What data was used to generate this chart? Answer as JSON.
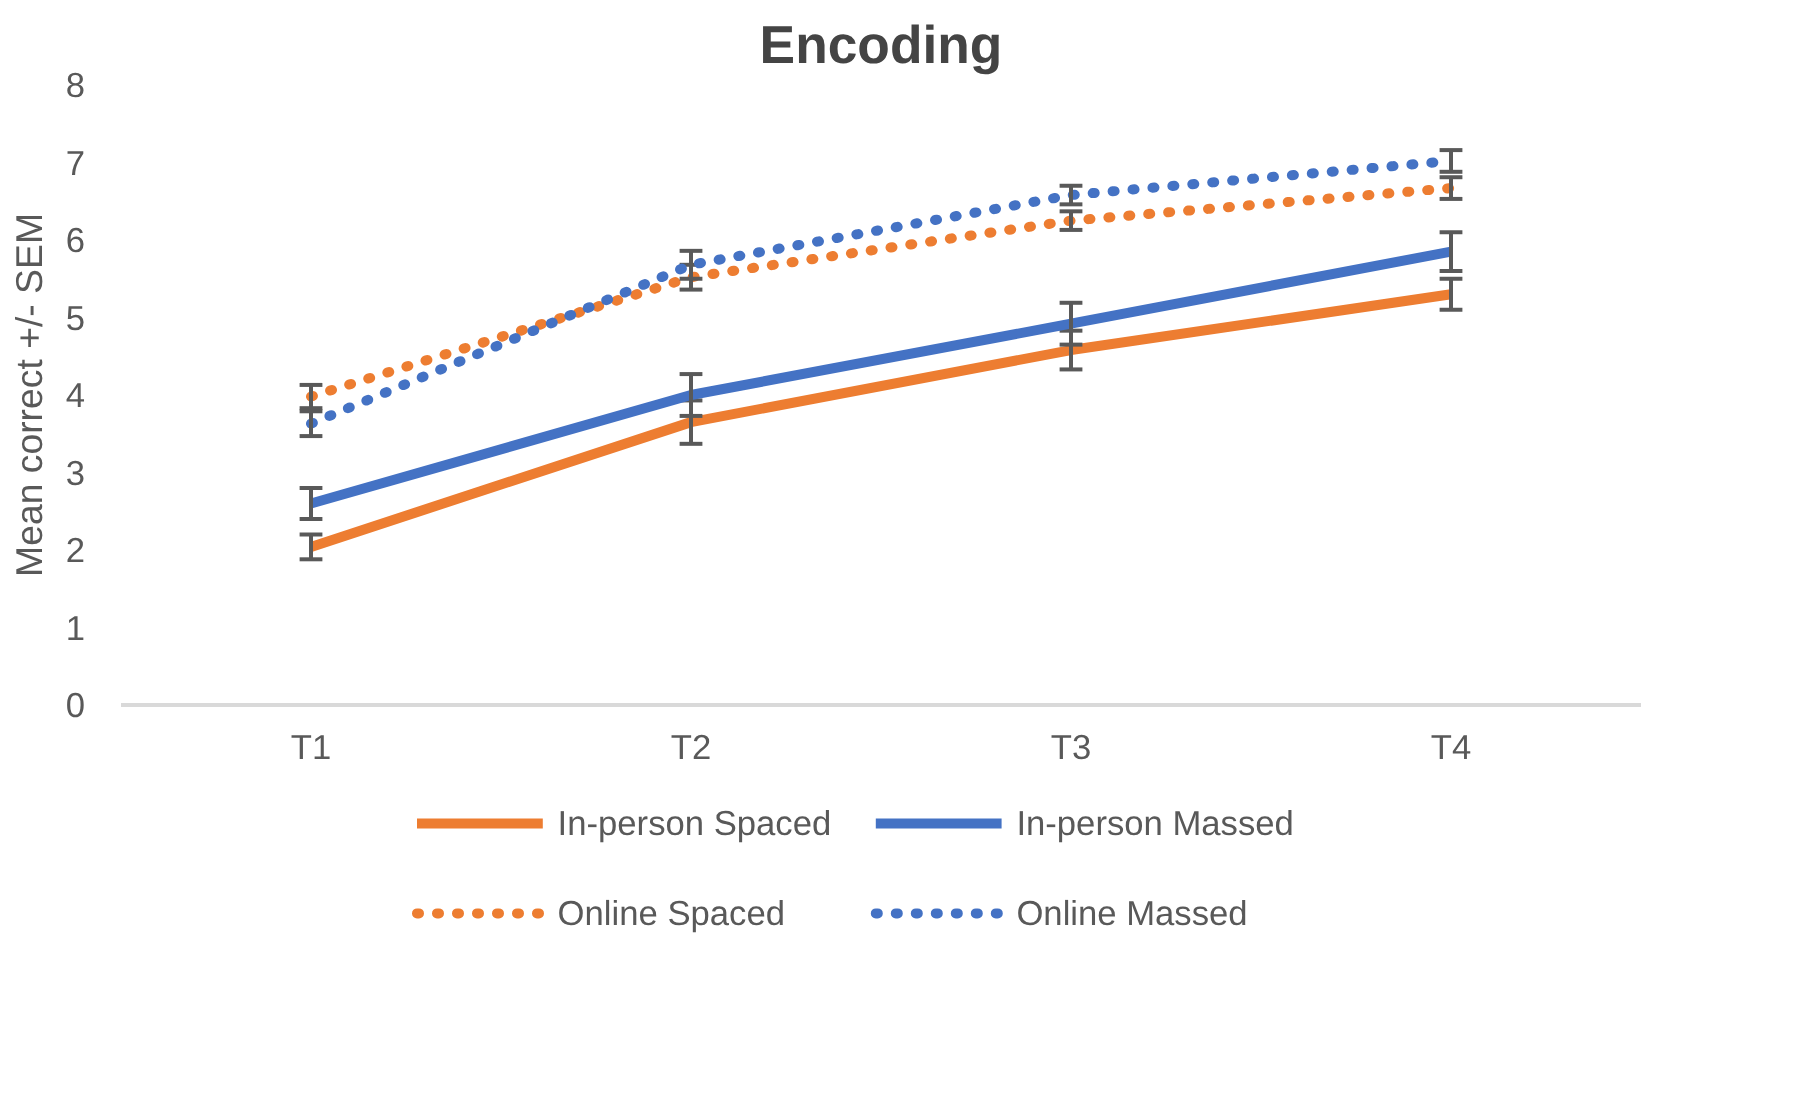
{
  "chart_data": {
    "type": "line",
    "title": "Encoding",
    "ylabel": "Mean correct +/- SEM",
    "categories": [
      "T1",
      "T2",
      "T3",
      "T4"
    ],
    "ylim": [
      0,
      8
    ],
    "yticks": [
      0,
      1,
      2,
      3,
      4,
      5,
      6,
      7,
      8
    ],
    "grid": false,
    "legend": "bottom",
    "marker": "none",
    "series": [
      {
        "name": "In-person Spaced",
        "color": "#ed7d31",
        "line_style": "solid",
        "values": [
          2.04,
          3.65,
          4.58,
          5.3
        ],
        "errors": [
          0.16,
          0.28,
          0.25,
          0.2
        ]
      },
      {
        "name": "In-person Massed",
        "color": "#4472c4",
        "line_style": "solid",
        "values": [
          2.6,
          4.0,
          4.92,
          5.85
        ],
        "errors": [
          0.2,
          0.27,
          0.27,
          0.25
        ]
      },
      {
        "name": "Online Spaced",
        "color": "#ed7d31",
        "line_style": "dotted",
        "values": [
          3.98,
          5.52,
          6.25,
          6.67
        ],
        "errors": [
          0.15,
          0.16,
          0.12,
          0.14
        ]
      },
      {
        "name": "Online Massed",
        "color": "#4472c4",
        "line_style": "dotted",
        "values": [
          3.63,
          5.68,
          6.58,
          7.02
        ],
        "errors": [
          0.16,
          0.18,
          0.12,
          0.14
        ]
      }
    ]
  }
}
